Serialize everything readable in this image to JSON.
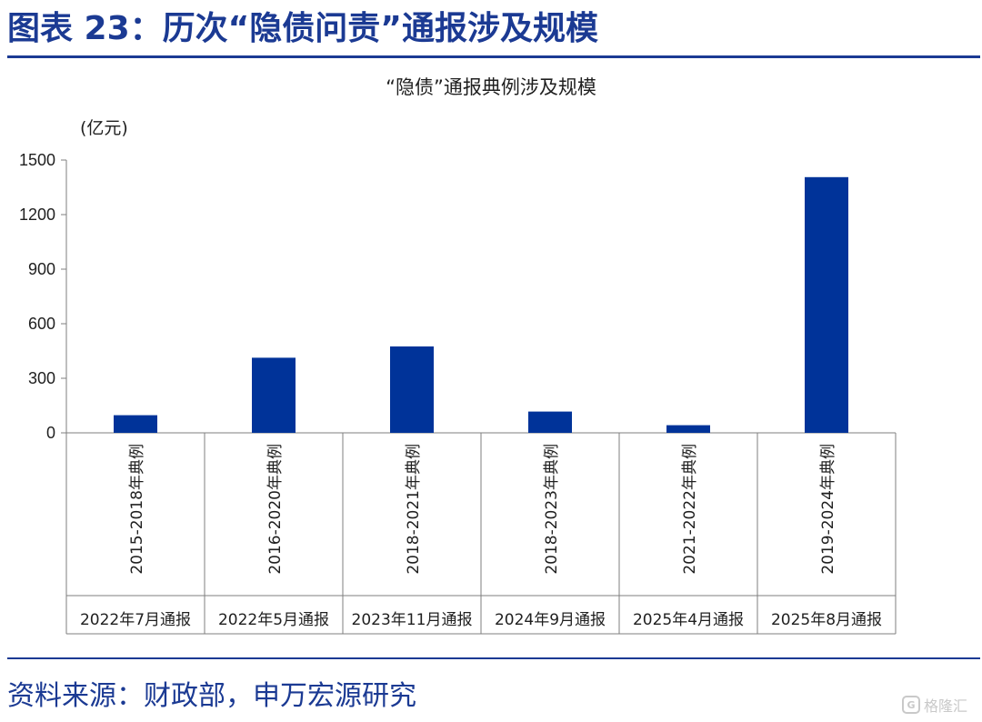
{
  "figure_title": "图表 23：历次“隐债问责”通报涉及规模",
  "source": "资料来源：财政部，申万宏源研究",
  "watermark": "格隆汇",
  "colors": {
    "bar": "#003399",
    "accent": "#1b3a93",
    "axis": "#7f7f7f"
  },
  "chart_data": {
    "type": "bar",
    "title": "“隐债”通报典例涉及规模",
    "ylabel": "(亿元)",
    "ylim": [
      0,
      1500
    ],
    "yticks": [
      0,
      300,
      600,
      900,
      1200,
      1500
    ],
    "grid": false,
    "categories": [
      {
        "case": "2015-2018年典例",
        "report": "2022年7月通报"
      },
      {
        "case": "2016-2020年典例",
        "report": "2022年5月通报"
      },
      {
        "case": "2018-2021年典例",
        "report": "2023年11月通报"
      },
      {
        "case": "2018-2023年典例",
        "report": "2024年9月通报"
      },
      {
        "case": "2021-2022年典例",
        "report": "2025年4月通报"
      },
      {
        "case": "2019-2024年典例",
        "report": "2025年8月通报"
      }
    ],
    "values": [
      97,
      413,
      475,
      117,
      42,
      1406
    ]
  }
}
